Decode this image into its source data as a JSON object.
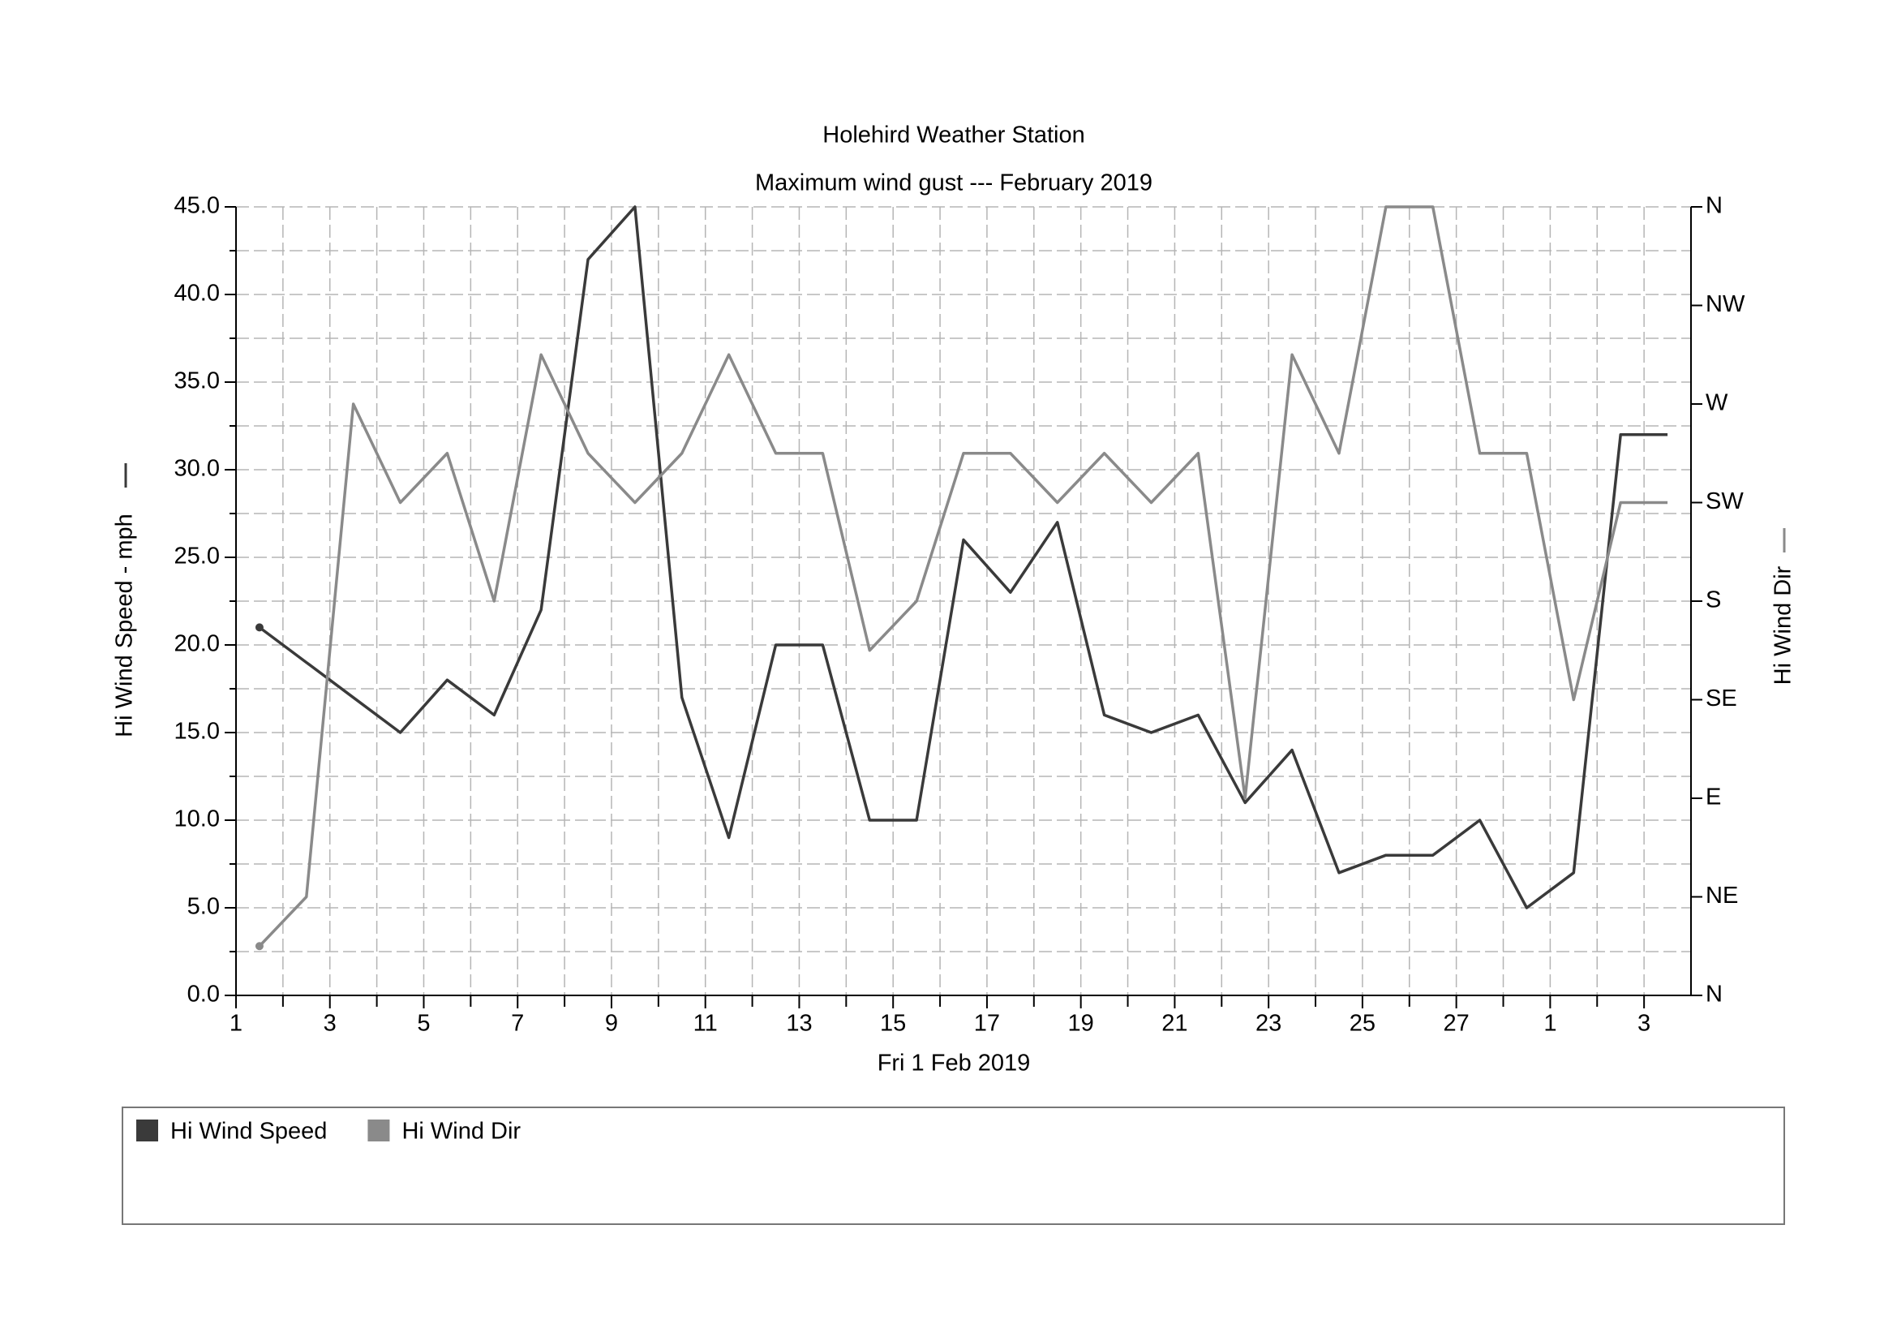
{
  "chart_data": {
    "type": "line",
    "title": "Holehird Weather Station",
    "subtitle": "Maximum wind gust --- February 2019",
    "x_label": "Fri 1 Feb 2019",
    "y_label": "Hi Wind Speed - mph",
    "y2_label": "Hi Wind Dir",
    "x": [
      0.5,
      1.5,
      2.5,
      3.5,
      4.5,
      5.5,
      6.5,
      7.5,
      8.5,
      9.5,
      10.5,
      11.5,
      12.5,
      13.5,
      14.5,
      15.5,
      16.5,
      17.5,
      18.5,
      19.5,
      20.5,
      21.5,
      22.5,
      23.5,
      24.5,
      25.5,
      26.5,
      27.5,
      28.5,
      29.5,
      30.5
    ],
    "series": [
      {
        "name": "Hi Wind Speed",
        "color": "#3a3a3a",
        "values": [
          21,
          19,
          17,
          15,
          18,
          16,
          22,
          42,
          45,
          17,
          9,
          20,
          20,
          10,
          10,
          26,
          23,
          27,
          16,
          15,
          16,
          11,
          14,
          7,
          8,
          8,
          10,
          5,
          7,
          32,
          32
        ]
      },
      {
        "name": "Hi Wind Dir",
        "color": "#8a8a8a",
        "axis": "y2",
        "values": [
          22.5,
          45,
          270,
          225,
          247.5,
          180,
          292.5,
          247.5,
          225,
          247.5,
          292.5,
          247.5,
          247.5,
          157.5,
          180,
          247.5,
          247.5,
          225,
          247.5,
          225,
          247.5,
          90,
          292.5,
          247.5,
          360,
          360,
          247.5,
          247.5,
          135,
          225,
          225
        ]
      }
    ],
    "xlim": [
      0,
      31
    ],
    "xticks": [
      {
        "value": 0,
        "label": "1"
      },
      {
        "value": 2,
        "label": "3"
      },
      {
        "value": 4,
        "label": "5"
      },
      {
        "value": 6,
        "label": "7"
      },
      {
        "value": 8,
        "label": "9"
      },
      {
        "value": 10,
        "label": "11"
      },
      {
        "value": 12,
        "label": "13"
      },
      {
        "value": 14,
        "label": "15"
      },
      {
        "value": 16,
        "label": "17"
      },
      {
        "value": 18,
        "label": "19"
      },
      {
        "value": 20,
        "label": "21"
      },
      {
        "value": 22,
        "label": "23"
      },
      {
        "value": 24,
        "label": "25"
      },
      {
        "value": 26,
        "label": "27"
      },
      {
        "value": 28,
        "label": "1"
      },
      {
        "value": 30,
        "label": "3"
      }
    ],
    "xminor": [
      1,
      3,
      5,
      7,
      9,
      11,
      13,
      15,
      17,
      19,
      21,
      23,
      25,
      27,
      29
    ],
    "ylim": [
      0,
      45
    ],
    "yticks": [
      {
        "value": 0,
        "label": "0.0"
      },
      {
        "value": 5,
        "label": "5.0"
      },
      {
        "value": 10,
        "label": "10.0"
      },
      {
        "value": 15,
        "label": "15.0"
      },
      {
        "value": 20,
        "label": "20.0"
      },
      {
        "value": 25,
        "label": "25.0"
      },
      {
        "value": 30,
        "label": "30.0"
      },
      {
        "value": 35,
        "label": "35.0"
      },
      {
        "value": 40,
        "label": "40.0"
      },
      {
        "value": 45,
        "label": "45.0"
      }
    ],
    "yminor": [
      2.5,
      7.5,
      12.5,
      17.5,
      22.5,
      27.5,
      32.5,
      37.5,
      42.5
    ],
    "y2lim": [
      0,
      360
    ],
    "y2ticks": [
      {
        "value": 0,
        "label": "N"
      },
      {
        "value": 45,
        "label": "NE"
      },
      {
        "value": 90,
        "label": "E"
      },
      {
        "value": 135,
        "label": "SE"
      },
      {
        "value": 180,
        "label": "S"
      },
      {
        "value": 225,
        "label": "SW"
      },
      {
        "value": 270,
        "label": "W"
      },
      {
        "value": 315,
        "label": "NW"
      },
      {
        "value": 360,
        "label": "N"
      }
    ],
    "grid": true
  }
}
